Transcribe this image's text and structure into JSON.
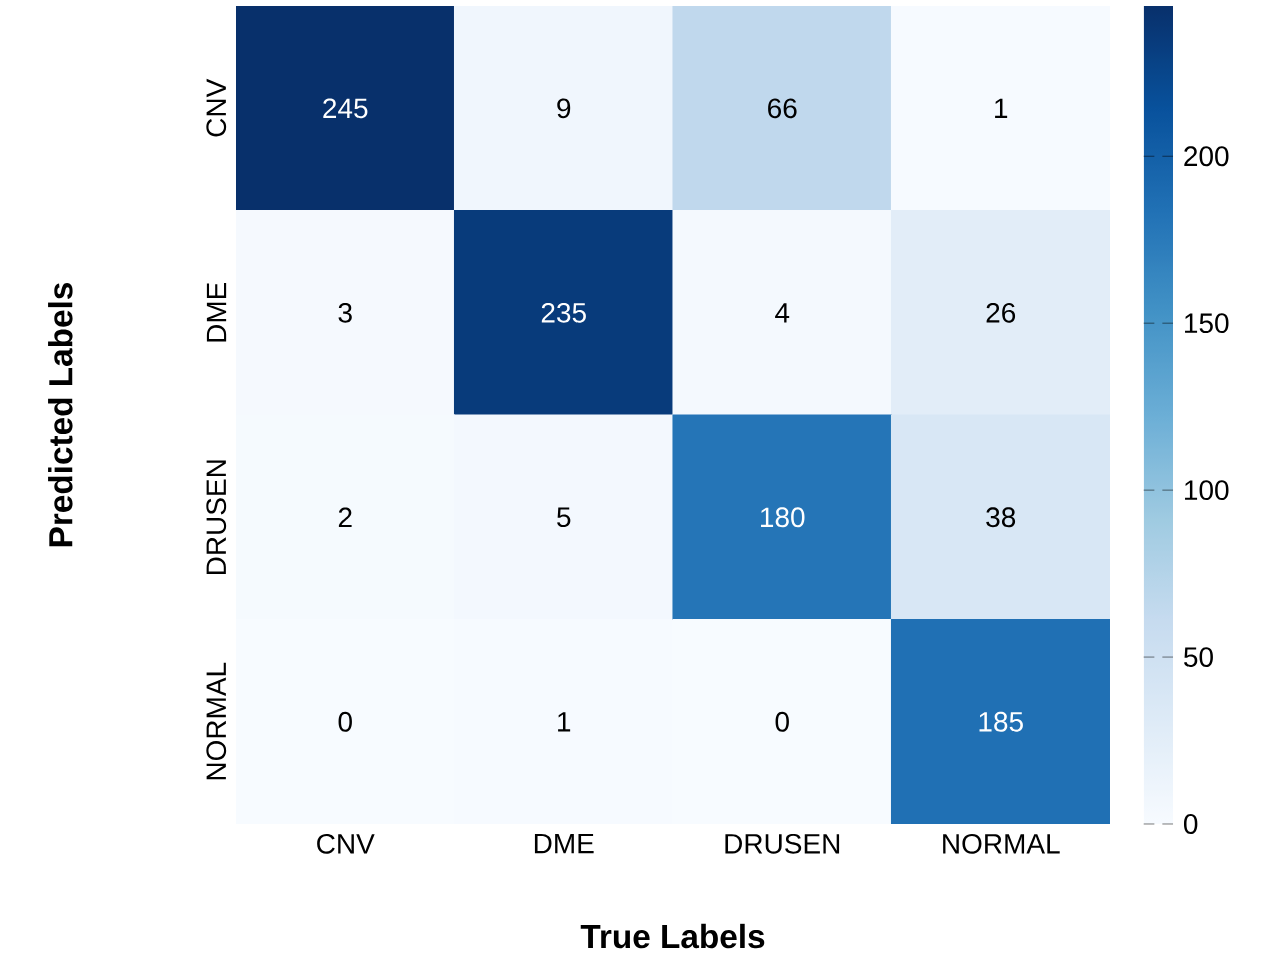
{
  "chart_data": {
    "type": "heatmap",
    "xlabel": "True Labels",
    "ylabel": "Predicted Labels",
    "categories": [
      "CNV",
      "DME",
      "DRUSEN",
      "NORMAL"
    ],
    "y_categories": [
      "CNV",
      "DME",
      "DRUSEN",
      "NORMAL"
    ],
    "cells": [
      [
        245,
        9,
        66,
        1
      ],
      [
        3,
        235,
        4,
        26
      ],
      [
        2,
        5,
        180,
        38
      ],
      [
        0,
        1,
        0,
        185
      ]
    ],
    "data_labels": true,
    "clim": [
      0,
      245
    ],
    "cticks": [
      0,
      50,
      100,
      150,
      200
    ]
  }
}
